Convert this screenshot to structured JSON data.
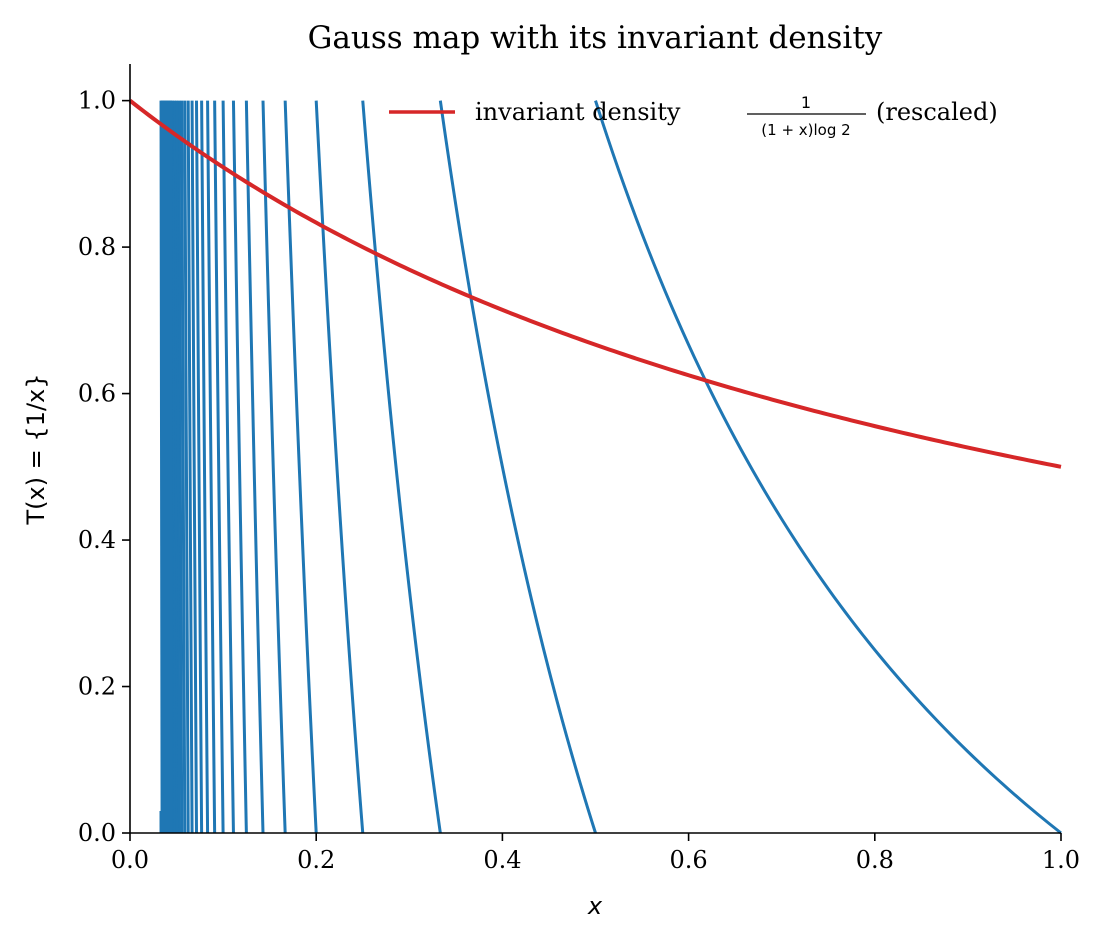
{
  "chart_data": {
    "type": "line",
    "title": "Gauss map with its invariant density",
    "xlabel": "x",
    "ylabel": "T(x) = {1/x}",
    "xlim": [
      0.0,
      1.0
    ],
    "ylim": [
      0.0,
      1.05
    ],
    "x_ticks": [
      "0.0",
      "0.2",
      "0.4",
      "0.6",
      "0.8",
      "1.0"
    ],
    "y_ticks": [
      "0.0",
      "0.2",
      "0.4",
      "0.6",
      "0.8",
      "1.0"
    ],
    "grid": false,
    "legend": {
      "placement": "top-right",
      "entries": [
        {
          "label_prefix": "invariant density",
          "fraction_numerator": "1",
          "fraction_denominator": "(1 + x)log 2",
          "label_suffix": "(rescaled)"
        }
      ]
    },
    "series": [
      {
        "name": "",
        "kind": "gauss_map",
        "formula": "T(x) = 1/x - floor(1/x)",
        "x_min": 0.0333,
        "color": "#1f77b4"
      },
      {
        "name": "invariant density (rescaled)",
        "kind": "invariant_density",
        "formula": "1/(1+x), rescaled so value at x=0 is 1",
        "x": [
          0.0,
          0.1,
          0.2,
          0.3,
          0.4,
          0.5,
          0.6,
          0.7,
          0.8,
          0.9,
          1.0
        ],
        "y": [
          1.0,
          0.909,
          0.833,
          0.769,
          0.714,
          0.667,
          0.625,
          0.588,
          0.556,
          0.526,
          0.5
        ],
        "color": "#d62728"
      }
    ]
  }
}
